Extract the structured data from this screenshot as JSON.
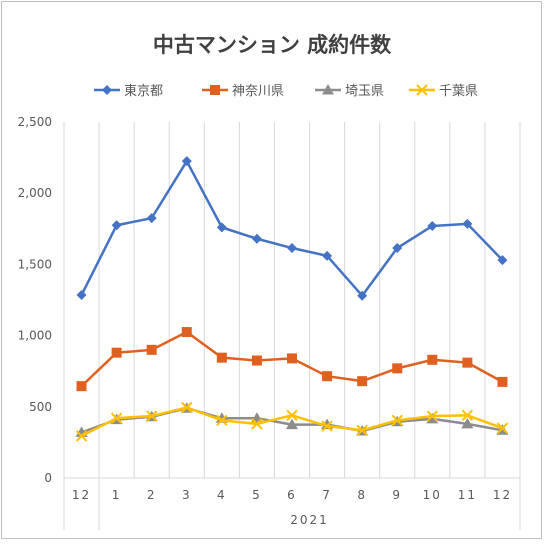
{
  "chart_data": {
    "type": "line",
    "title": "中古マンション 成約件数",
    "categories": [
      "12",
      "1",
      "2",
      "3",
      "4",
      "5",
      "6",
      "7",
      "8",
      "9",
      "10",
      "11",
      "12"
    ],
    "year_label": "2021",
    "ylim": [
      0,
      2500
    ],
    "yticks": [
      "0",
      "500",
      "1,000",
      "1,500",
      "2,000",
      "2,500"
    ],
    "ytick_values": [
      0,
      500,
      1000,
      1500,
      2000,
      2500
    ],
    "grid": "vertical",
    "legend_position": "top",
    "series": [
      {
        "name": "東京都",
        "color": "#4472C4",
        "marker": "diamond",
        "values": [
          1285,
          1775,
          1825,
          2225,
          1760,
          1680,
          1615,
          1560,
          1280,
          1615,
          1770,
          1785,
          1530
        ]
      },
      {
        "name": "神奈川県",
        "color": "#E0601F",
        "marker": "square",
        "values": [
          645,
          880,
          900,
          1025,
          845,
          825,
          840,
          715,
          680,
          770,
          830,
          810,
          675
        ]
      },
      {
        "name": "埼玉県",
        "color": "#8C8C8C",
        "marker": "triangle",
        "values": [
          320,
          410,
          430,
          490,
          420,
          420,
          375,
          375,
          330,
          395,
          415,
          380,
          335
        ]
      },
      {
        "name": "千葉県",
        "color": "#FFC000",
        "marker": "x",
        "values": [
          295,
          420,
          435,
          495,
          405,
          380,
          440,
          365,
          335,
          405,
          435,
          440,
          350
        ]
      }
    ]
  }
}
